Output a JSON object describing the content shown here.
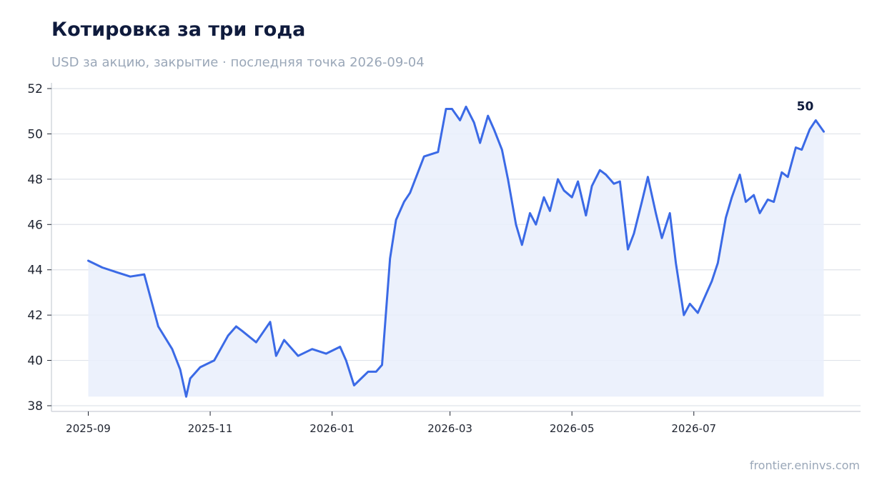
{
  "header": {
    "title": "Котировка за три года",
    "subtitle": "USD за акцию, закрытие · последняя точка 2026-09-04"
  },
  "footer": {
    "source": "frontier.eninvs.com"
  },
  "colors": {
    "line": "#3b6ae6",
    "fill": "#e9effc",
    "grid": "#dfe3ea",
    "axis": "#c9ced6"
  },
  "chart_data": {
    "type": "area",
    "title": "Котировка за три года",
    "subtitle": "USD за акцию, закрытие · последняя точка 2026-09-04",
    "xlabel": "",
    "ylabel": "",
    "ylim": [
      38,
      52
    ],
    "yticks": [
      38,
      40,
      42,
      44,
      46,
      48,
      50,
      52
    ],
    "xticks": [
      "2025-09",
      "2025-11",
      "2026-01",
      "2026-03",
      "2026-05",
      "2026-07"
    ],
    "xrange": [
      "2025-09-01",
      "2026-09-04"
    ],
    "grid": "horizontal",
    "last_value_label": "50",
    "series": [
      {
        "x": [
          "2025-09-01",
          "2025-09-08",
          "2025-09-15",
          "2025-09-22",
          "2025-09-29",
          "2025-10-06",
          "2025-10-13",
          "2025-10-17",
          "2025-10-20",
          "2025-10-22",
          "2025-10-27",
          "2025-11-03",
          "2025-11-10",
          "2025-11-14",
          "2025-11-17",
          "2025-11-24",
          "2025-12-01",
          "2025-12-04",
          "2025-12-08",
          "2025-12-15",
          "2025-12-22",
          "2025-12-29",
          "2026-01-05",
          "2026-01-08",
          "2026-01-12",
          "2026-01-19",
          "2026-01-23",
          "2026-01-26",
          "2026-01-30",
          "2026-02-02",
          "2026-02-06",
          "2026-02-09",
          "2026-02-16",
          "2026-02-23",
          "2026-02-27",
          "2026-03-02",
          "2026-03-06",
          "2026-03-09",
          "2026-03-13",
          "2026-03-16",
          "2026-03-20",
          "2026-03-23",
          "2026-03-27",
          "2026-03-30",
          "2026-04-03",
          "2026-04-06",
          "2026-04-10",
          "2026-04-13",
          "2026-04-17",
          "2026-04-20",
          "2026-04-24",
          "2026-04-27",
          "2026-05-01",
          "2026-05-04",
          "2026-05-08",
          "2026-05-11",
          "2026-05-15",
          "2026-05-18",
          "2026-05-22",
          "2026-05-25",
          "2026-05-29",
          "2026-06-01",
          "2026-06-05",
          "2026-06-08",
          "2026-06-12",
          "2026-06-15",
          "2026-06-19",
          "2026-06-22",
          "2026-06-26",
          "2026-06-29",
          "2026-07-03",
          "2026-07-06",
          "2026-07-10",
          "2026-07-13",
          "2026-07-17",
          "2026-07-20",
          "2026-07-24",
          "2026-07-27",
          "2026-07-31",
          "2026-08-03",
          "2026-08-07",
          "2026-08-10",
          "2026-08-14",
          "2026-08-17",
          "2026-08-21",
          "2026-08-24",
          "2026-08-28",
          "2026-08-31",
          "2026-09-04"
        ],
        "values": [
          44.4,
          44.1,
          43.9,
          43.7,
          43.8,
          41.5,
          40.5,
          39.6,
          38.4,
          39.2,
          39.7,
          40.0,
          41.1,
          41.5,
          41.3,
          40.8,
          41.7,
          40.2,
          40.9,
          40.2,
          40.5,
          40.3,
          40.6,
          40.0,
          38.9,
          39.5,
          39.5,
          39.8,
          44.5,
          46.2,
          47.0,
          47.4,
          49.0,
          49.2,
          51.1,
          51.1,
          50.6,
          51.2,
          50.5,
          49.6,
          50.8,
          50.2,
          49.3,
          48.0,
          46.0,
          45.1,
          46.5,
          46.0,
          47.2,
          46.6,
          48.0,
          47.5,
          47.2,
          47.9,
          46.4,
          47.7,
          48.4,
          48.2,
          47.8,
          47.9,
          44.9,
          45.6,
          47.0,
          48.1,
          46.5,
          45.4,
          46.5,
          44.3,
          42.0,
          42.5,
          42.1,
          42.7,
          43.5,
          44.3,
          46.3,
          47.2,
          48.2,
          47.0,
          47.3,
          46.5,
          47.1,
          47.0,
          48.3,
          48.1,
          49.4,
          49.3,
          50.2,
          50.6,
          50.1
        ]
      }
    ]
  }
}
